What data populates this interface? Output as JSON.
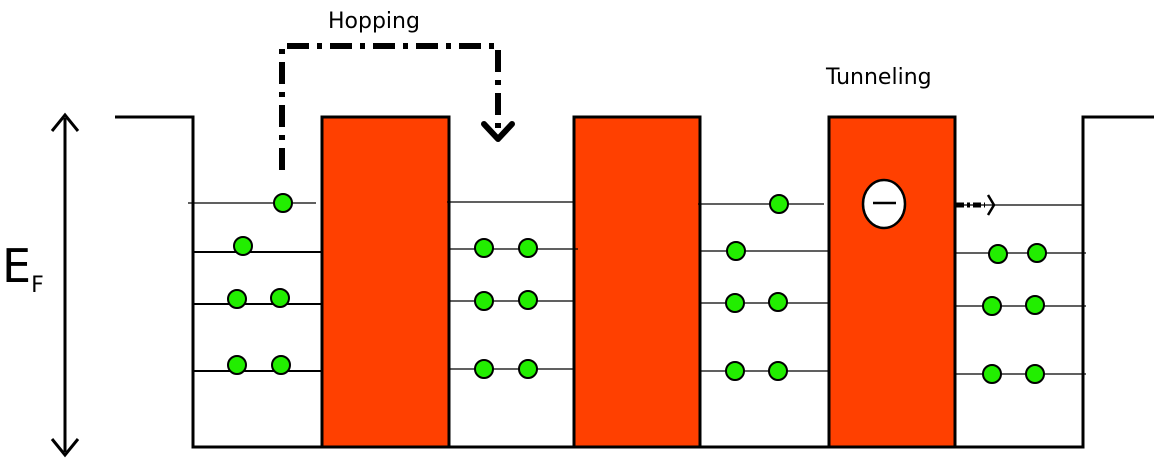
{
  "labels": {
    "hopping": "Hopping",
    "tunneling": "Tunneling",
    "fermi_main": "E",
    "fermi_sub": "F"
  },
  "colors": {
    "barrier": "#ff4000",
    "electron": "#22ee00",
    "line": "#000000"
  },
  "wells": [
    {
      "name": "well-1",
      "levels": 4,
      "electrons_per_level": [
        1,
        1,
        2,
        2
      ]
    },
    {
      "name": "well-2",
      "levels": 4,
      "electrons_per_level": [
        0,
        2,
        2,
        2
      ]
    },
    {
      "name": "well-3",
      "levels": 4,
      "electrons_per_level": [
        1,
        1,
        2,
        2
      ]
    },
    {
      "name": "well-4",
      "levels": 4,
      "electrons_per_level": [
        0,
        2,
        2,
        2
      ]
    }
  ],
  "barriers": 3,
  "tunneling_charge": "−"
}
